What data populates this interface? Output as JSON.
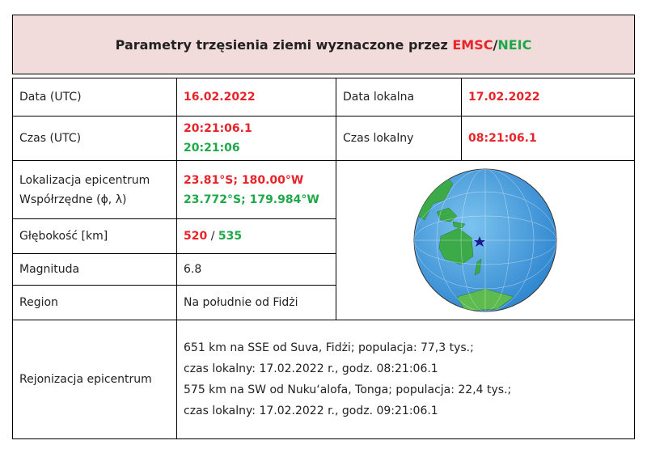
{
  "header": {
    "title": "Parametry trzęsienia ziemi wyznaczone przez",
    "emsc": "EMSC",
    "separator": "/",
    "neic": "NEIC"
  },
  "table": {
    "date_utc": {
      "label": "Data (UTC)",
      "value": "16.02.2022"
    },
    "date_local": {
      "label": "Data lokalna",
      "value": "17.02.2022"
    },
    "time_utc": {
      "label": "Czas (UTC)",
      "emsc": "20:21:06.1",
      "neic": "20:21:06"
    },
    "time_local": {
      "label": "Czas lokalny",
      "value": "08:21:06.1"
    },
    "location": {
      "label": [
        "Lokalizacja epicentrum",
        "Współrzędne (ϕ, λ)"
      ],
      "emsc": "23.81°S; 180.00°W",
      "neic": "23.772°S; 179.984°W"
    },
    "depth": {
      "label": "Głębokość [km]",
      "emsc": "520",
      "separator": "/",
      "neic": "535"
    },
    "magnitude": {
      "label": "Magnituda",
      "value": "6.8"
    },
    "region": {
      "label": "Region",
      "value": "Na południe od Fidżi"
    },
    "regionalization": {
      "label": "Rejonizacja epicentrum",
      "lines": [
        "651 km na SSE od Suva, Fidżi; populacja: 77,3 tys.;",
        "czas lokalny: 17.02.2022 r., godz. 08:21:06.1",
        "575 km na SW od Nuku‘alofa, Tonga; populacja: 22,4 tys.;",
        "czas lokalny: 17.02.2022 r.,  godz. 09:21:06.1"
      ]
    }
  }
}
